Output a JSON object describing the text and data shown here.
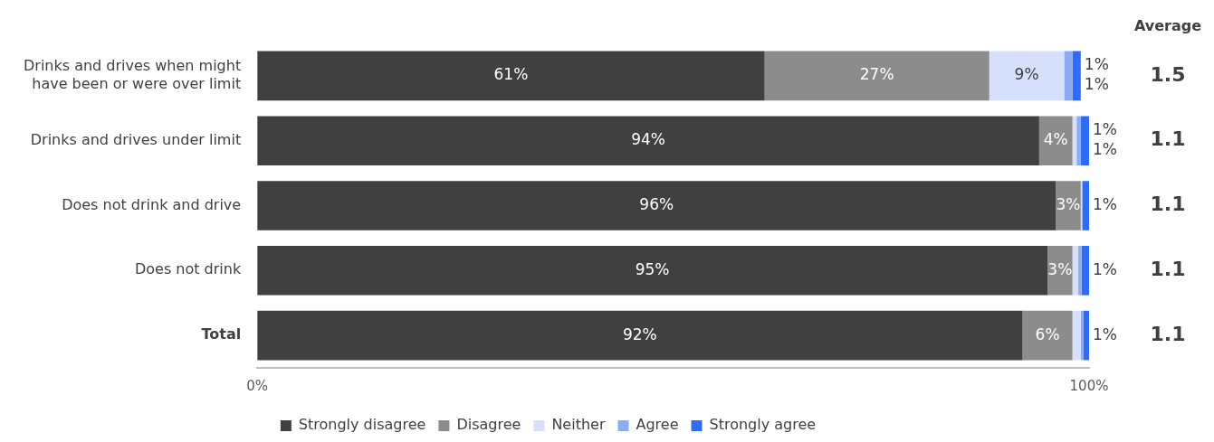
{
  "chart_data": {
    "type": "bar",
    "orientation": "horizontal",
    "stacked": true,
    "categories": [
      "Drinks and drives when might have been or were over limit",
      "Drinks and drives under limit",
      "Does not drink and drive",
      "Does not drink",
      "Total"
    ],
    "series": [
      {
        "name": "Strongly disagree",
        "color": "#404040",
        "values": [
          61,
          94,
          96,
          95,
          92
        ],
        "value_labels": [
          "61%",
          "94%",
          "96%",
          "95%",
          "92%"
        ]
      },
      {
        "name": "Disagree",
        "color": "#8c8c8c",
        "values": [
          27,
          4,
          3,
          3,
          6
        ],
        "value_labels": [
          "27%",
          "4%",
          "3%",
          "3%",
          "6%"
        ]
      },
      {
        "name": "Neither",
        "color": "#d6e0fb",
        "values": [
          9,
          0.5,
          0.1,
          0.7,
          1
        ],
        "value_labels": [
          "9%",
          null,
          null,
          null,
          "1%"
        ]
      },
      {
        "name": "Agree",
        "color": "#8aabf5",
        "values": [
          1,
          0.5,
          0.1,
          0.4,
          0.3
        ],
        "value_labels": [
          "1%",
          "1%",
          null,
          null,
          null
        ]
      },
      {
        "name": "Strongly agree",
        "color": "#2f6cf6",
        "values": [
          1,
          1,
          0.8,
          0.9,
          0.7
        ],
        "value_labels": [
          "1%",
          "1%",
          "1%",
          "1%",
          null
        ]
      }
    ],
    "xlim": [
      0,
      100
    ],
    "xticks": [
      {
        "value": 0,
        "label": "0%"
      },
      {
        "value": 100,
        "label": "100%"
      }
    ],
    "grid": false,
    "legend": "bottom",
    "annotations": [
      "Average",
      "1.5",
      "1.1",
      "1.1",
      "1.1",
      "1.1"
    ]
  }
}
